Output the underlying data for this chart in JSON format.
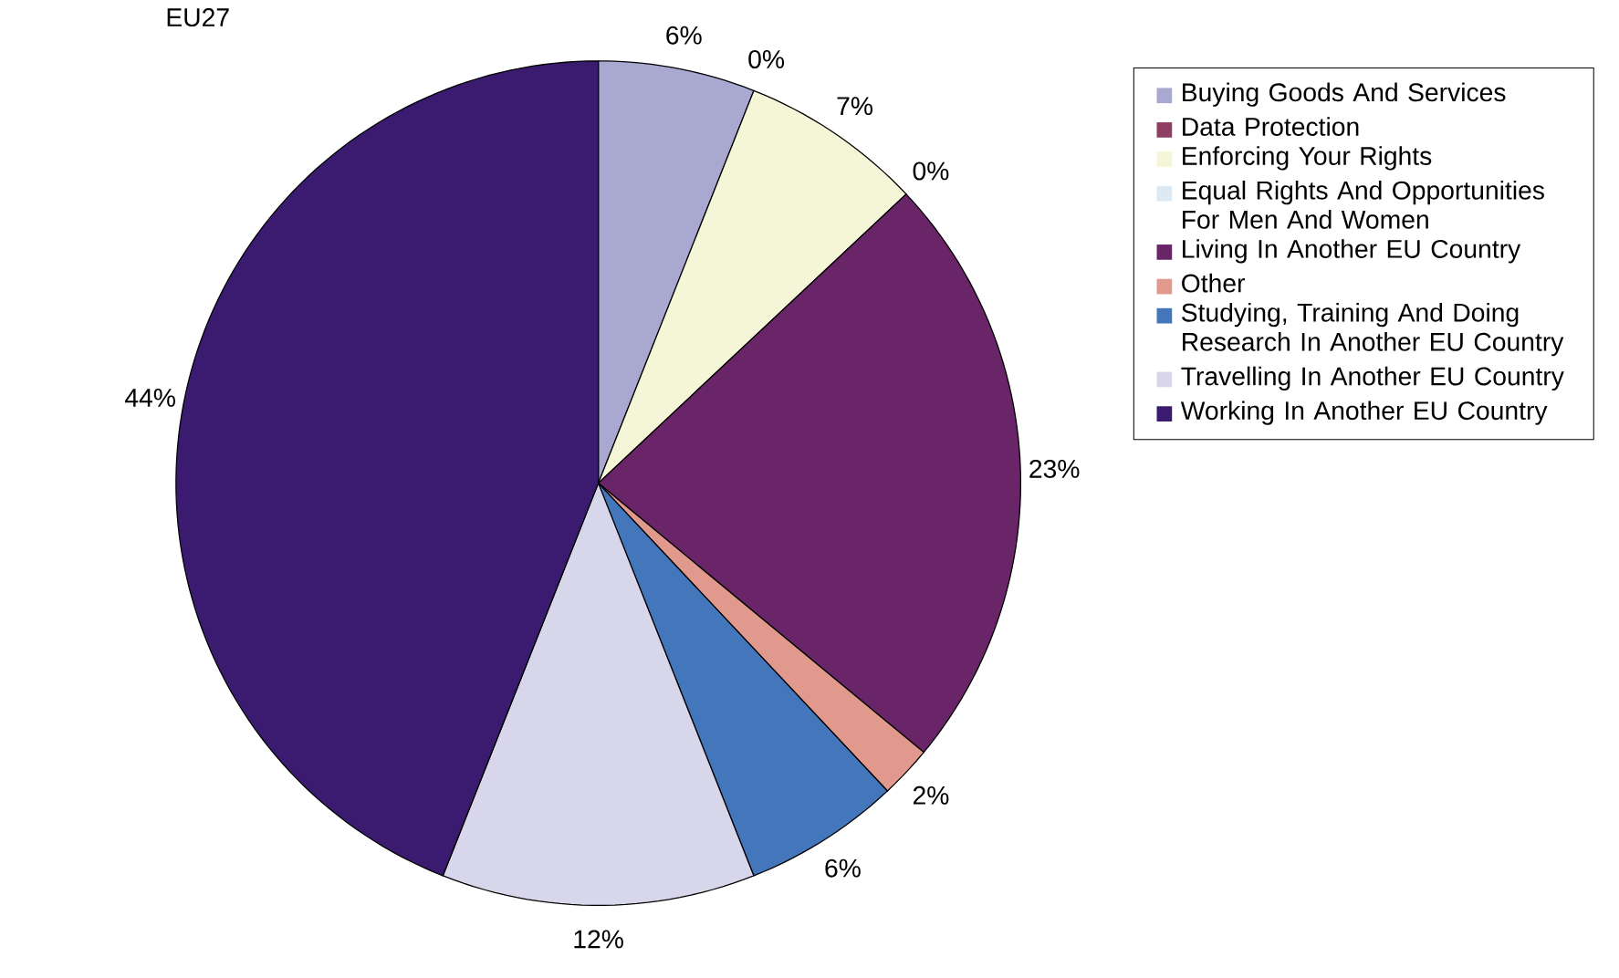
{
  "chart_data": {
    "type": "pie",
    "title": "EU27",
    "categories": [
      "Buying Goods And Services",
      "Data Protection",
      "Enforcing Your Rights",
      "Equal Rights And Opportunities For Men And Women",
      "Living In Another EU Country",
      "Other",
      "Studying, Training And Doing Research In Another EU Country",
      "Travelling In Another EU Country",
      "Working In Another EU Country"
    ],
    "values": [
      6,
      0,
      7,
      0,
      23,
      2,
      6,
      12,
      44
    ],
    "value_labels": [
      "6%",
      "0%",
      "7%",
      "0%",
      "23%",
      "2%",
      "6%",
      "12%",
      "44%"
    ],
    "colors": [
      "#a9a8d0",
      "#8e3e63",
      "#f5f5d8",
      "#dde9f3",
      "#6a2569",
      "#e0998c",
      "#4476bb",
      "#d8d6ea",
      "#3b1b6f"
    ],
    "legend": "right"
  }
}
